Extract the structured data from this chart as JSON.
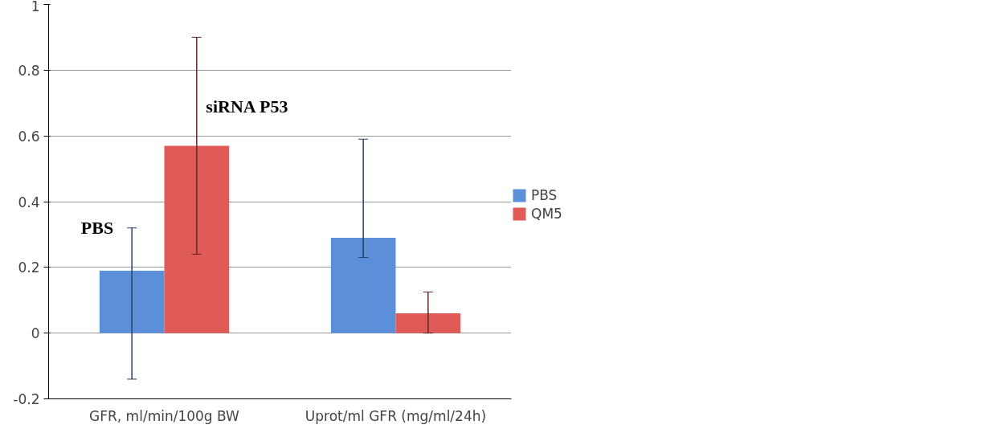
{
  "chart_data": {
    "type": "bar",
    "categories": [
      "GFR, ml/min/100g BW",
      "Uprot/ml GFR (mg/ml/24h)"
    ],
    "series": [
      {
        "name": "PBS",
        "color": "#5b8fd9",
        "values": [
          0.19,
          0.29
        ],
        "errors": [
          [
            -0.14,
            0.32
          ],
          [
            0.23,
            0.59
          ]
        ]
      },
      {
        "name": "QM5",
        "color": "#e05a57",
        "values": [
          0.57,
          0.06
        ],
        "errors": [
          [
            0.24,
            0.9
          ],
          [
            0.0,
            0.125
          ]
        ]
      }
    ],
    "annotations": [
      "PBS",
      "siRNA P53"
    ],
    "ylim": [
      -0.2,
      1
    ],
    "yticks": [
      -0.2,
      0,
      0.2,
      0.4,
      0.6,
      0.8,
      1
    ],
    "grid": "y",
    "legend": "right"
  }
}
